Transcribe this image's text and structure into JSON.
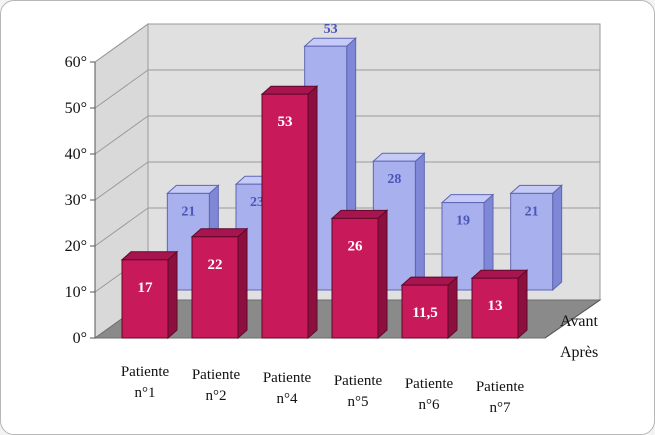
{
  "chart_data": {
    "type": "bar",
    "title": "",
    "xlabel": "",
    "ylabel": "",
    "ylim": [
      0,
      60
    ],
    "yticks": [
      "0°",
      "10°",
      "20°",
      "30°",
      "40°",
      "50°",
      "60°"
    ],
    "grid": true,
    "categories": [
      [
        "Patiente",
        "n°1"
      ],
      [
        "Patiente",
        "n°2"
      ],
      [
        "Patiente",
        "n°4"
      ],
      [
        "Patiente",
        "n°5"
      ],
      [
        "Patiente",
        "n°6"
      ],
      [
        "Patiente",
        "n°7"
      ]
    ],
    "series": [
      {
        "name": "Avant",
        "values": [
          21,
          23,
          53,
          28,
          19,
          21
        ],
        "labels": [
          "21",
          "23",
          "53",
          "28",
          "19",
          "21"
        ],
        "color": "#a9b0ee"
      },
      {
        "name": "Après",
        "values": [
          17,
          22,
          53,
          26,
          11.5,
          13
        ],
        "labels": [
          "17",
          "22",
          "53",
          "26",
          "11,5",
          "13"
        ],
        "color": "#c8195b"
      }
    ]
  }
}
